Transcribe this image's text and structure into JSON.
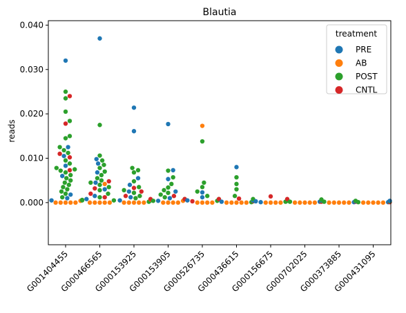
{
  "chart_data": {
    "type": "scatter",
    "subtype": "swarm (strip) plot",
    "title": "Blautia",
    "xlabel": "",
    "ylabel": "reads",
    "ylim": [
      -0.0095,
      0.041
    ],
    "yticks": [
      0.0,
      0.01,
      0.02,
      0.03,
      0.04
    ],
    "ytick_labels": [
      "0.000",
      "0.010",
      "0.020",
      "0.030",
      "0.040"
    ],
    "grid": false,
    "categories": [
      "G001404455",
      "G000466565",
      "G000153925",
      "G000153905",
      "G000526735",
      "G000436615",
      "G000156675",
      "G000702025",
      "G000373885",
      "G000431095"
    ],
    "legend": {
      "title": "treatment",
      "placement": "top-right",
      "entries": [
        {
          "label": "PRE",
          "color": "#1f77b4"
        },
        {
          "label": "AB",
          "color": "#ff7f0e"
        },
        {
          "label": "POST",
          "color": "#2ca02c"
        },
        {
          "label": "CNTL",
          "color": "#d62728"
        }
      ]
    },
    "series": [
      {
        "name": "PRE",
        "color": "#1f77b4",
        "points": [
          [
            "G001404455",
            0.032
          ],
          [
            "G001404455",
            0.0125
          ],
          [
            "G001404455",
            0.0105
          ],
          [
            "G001404455",
            0.0083
          ],
          [
            "G001404455",
            0.006
          ],
          [
            "G001404455",
            0.0018
          ],
          [
            "G001404455",
            0.001
          ],
          [
            "G001404455",
            0.0005
          ],
          [
            "G000466565",
            0.037
          ],
          [
            "G000466565",
            0.0098
          ],
          [
            "G000466565",
            0.0088
          ],
          [
            "G000466565",
            0.0068
          ],
          [
            "G000466565",
            0.0045
          ],
          [
            "G000466565",
            0.003
          ],
          [
            "G000466565",
            0.0015
          ],
          [
            "G000466565",
            0.0008
          ],
          [
            "G000153925",
            0.0214
          ],
          [
            "G000153925",
            0.0161
          ],
          [
            "G000153925",
            0.0055
          ],
          [
            "G000153925",
            0.004
          ],
          [
            "G000153925",
            0.0025
          ],
          [
            "G000153925",
            0.0012
          ],
          [
            "G000153925",
            0.0005
          ],
          [
            "G000153905",
            0.0177
          ],
          [
            "G000153905",
            0.0073
          ],
          [
            "G000153905",
            0.0053
          ],
          [
            "G000153905",
            0.0025
          ],
          [
            "G000153905",
            0.001
          ],
          [
            "G000153905",
            0.0004
          ],
          [
            "G000526735",
            0.0023
          ],
          [
            "G000526735",
            0.0012
          ],
          [
            "G000526735",
            0.0005
          ],
          [
            "G000436615",
            0.008
          ],
          [
            "G000436615",
            0.0005
          ],
          [
            "G000436615",
            0.0002
          ],
          [
            "G000156675",
            0.0003
          ],
          [
            "G000156675",
            0.0001
          ],
          [
            "G000702025",
            0.0005
          ],
          [
            "G000702025",
            0.0002
          ],
          [
            "G000373885",
            0.0003
          ],
          [
            "G000373885",
            0.0001
          ],
          [
            "G000431095",
            0.0004
          ],
          [
            "G000431095",
            0.0001
          ]
        ]
      },
      {
        "name": "AB",
        "color": "#ff7f0e",
        "points": [
          [
            "G001404455",
            0.0004
          ],
          [
            "G001404455",
            0.0
          ],
          [
            "G001404455",
            0.0
          ],
          [
            "G001404455",
            0.0
          ],
          [
            "G001404455",
            0.0
          ],
          [
            "G001404455",
            0.0
          ],
          [
            "G000466565",
            0.0042
          ],
          [
            "G000466565",
            0.0
          ],
          [
            "G000466565",
            0.0
          ],
          [
            "G000466565",
            0.0
          ],
          [
            "G000466565",
            0.0
          ],
          [
            "G000466565",
            0.0
          ],
          [
            "G000153925",
            0.0007
          ],
          [
            "G000153925",
            0.0
          ],
          [
            "G000153925",
            0.0
          ],
          [
            "G000153925",
            0.0
          ],
          [
            "G000153925",
            0.0
          ],
          [
            "G000153925",
            0.0
          ],
          [
            "G000153905",
            0.0004
          ],
          [
            "G000153905",
            0.0
          ],
          [
            "G000153905",
            0.0
          ],
          [
            "G000153905",
            0.0
          ],
          [
            "G000153905",
            0.0
          ],
          [
            "G000526735",
            0.0173
          ],
          [
            "G000526735",
            0.0
          ],
          [
            "G000526735",
            0.0
          ],
          [
            "G000526735",
            0.0
          ],
          [
            "G000526735",
            0.0
          ],
          [
            "G000436615",
            0.0
          ],
          [
            "G000436615",
            0.0
          ],
          [
            "G000436615",
            0.0
          ],
          [
            "G000436615",
            0.0
          ],
          [
            "G000436615",
            0.0
          ],
          [
            "G000156675",
            0.0
          ],
          [
            "G000156675",
            0.0
          ],
          [
            "G000156675",
            0.0
          ],
          [
            "G000156675",
            0.0
          ],
          [
            "G000702025",
            0.0
          ],
          [
            "G000702025",
            0.0
          ],
          [
            "G000702025",
            0.0
          ],
          [
            "G000702025",
            0.0
          ],
          [
            "G000702025",
            0.0
          ],
          [
            "G000373885",
            0.0
          ],
          [
            "G000373885",
            0.0
          ],
          [
            "G000373885",
            0.0
          ],
          [
            "G000373885",
            0.0
          ],
          [
            "G000373885",
            0.0
          ],
          [
            "G000431095",
            0.0
          ],
          [
            "G000431095",
            0.0
          ],
          [
            "G000431095",
            0.0
          ],
          [
            "G000431095",
            0.0
          ],
          [
            "G000431095",
            0.0
          ]
        ]
      },
      {
        "name": "POST",
        "color": "#2ca02c",
        "points": [
          [
            "G001404455",
            0.025
          ],
          [
            "G001404455",
            0.0235
          ],
          [
            "G001404455",
            0.0205
          ],
          [
            "G001404455",
            0.0184
          ],
          [
            "G001404455",
            0.015
          ],
          [
            "G001404455",
            0.0145
          ],
          [
            "G001404455",
            0.0125
          ],
          [
            "G001404455",
            0.0118
          ],
          [
            "G001404455",
            0.0112
          ],
          [
            "G001404455",
            0.0095
          ],
          [
            "G001404455",
            0.0088
          ],
          [
            "G001404455",
            0.0078
          ],
          [
            "G001404455",
            0.0075
          ],
          [
            "G001404455",
            0.0072
          ],
          [
            "G001404455",
            0.0068
          ],
          [
            "G001404455",
            0.0062
          ],
          [
            "G001404455",
            0.0055
          ],
          [
            "G001404455",
            0.005
          ],
          [
            "G001404455",
            0.0045
          ],
          [
            "G001404455",
            0.004
          ],
          [
            "G001404455",
            0.0035
          ],
          [
            "G001404455",
            0.003
          ],
          [
            "G001404455",
            0.0025
          ],
          [
            "G001404455",
            0.002
          ],
          [
            "G001404455",
            0.0012
          ],
          [
            "G001404455",
            0.0006
          ],
          [
            "G001404455",
            0.0005
          ],
          [
            "G000466565",
            0.0175
          ],
          [
            "G000466565",
            0.0106
          ],
          [
            "G000466565",
            0.0095
          ],
          [
            "G000466565",
            0.0085
          ],
          [
            "G000466565",
            0.0078
          ],
          [
            "G000466565",
            0.007
          ],
          [
            "G000466565",
            0.0062
          ],
          [
            "G000466565",
            0.0055
          ],
          [
            "G000466565",
            0.005
          ],
          [
            "G000466565",
            0.0045
          ],
          [
            "G000466565",
            0.004
          ],
          [
            "G000466565",
            0.0035
          ],
          [
            "G000466565",
            0.0028
          ],
          [
            "G000466565",
            0.002
          ],
          [
            "G000466565",
            0.0012
          ],
          [
            "G000466565",
            0.0005
          ],
          [
            "G000153925",
            0.0078
          ],
          [
            "G000153925",
            0.0073
          ],
          [
            "G000153925",
            0.0068
          ],
          [
            "G000153925",
            0.0048
          ],
          [
            "G000153925",
            0.0035
          ],
          [
            "G000153925",
            0.0028
          ],
          [
            "G000153925",
            0.0022
          ],
          [
            "G000153925",
            0.0015
          ],
          [
            "G000153925",
            0.001
          ],
          [
            "G000153925",
            0.0005
          ],
          [
            "G000153925",
            0.0002
          ],
          [
            "G000153905",
            0.0072
          ],
          [
            "G000153905",
            0.0057
          ],
          [
            "G000153905",
            0.0042
          ],
          [
            "G000153905",
            0.0034
          ],
          [
            "G000153905",
            0.0028
          ],
          [
            "G000153905",
            0.0022
          ],
          [
            "G000153905",
            0.0018
          ],
          [
            "G000153905",
            0.0012
          ],
          [
            "G000153905",
            0.0008
          ],
          [
            "G000153905",
            0.0004
          ],
          [
            "G000526735",
            0.0138
          ],
          [
            "G000526735",
            0.0045
          ],
          [
            "G000526735",
            0.0035
          ],
          [
            "G000526735",
            0.0025
          ],
          [
            "G000526735",
            0.0015
          ],
          [
            "G000526735",
            0.0008
          ],
          [
            "G000526735",
            0.0004
          ],
          [
            "G000436615",
            0.0057
          ],
          [
            "G000436615",
            0.0042
          ],
          [
            "G000436615",
            0.003
          ],
          [
            "G000436615",
            0.0015
          ],
          [
            "G000436615",
            0.0008
          ],
          [
            "G000436615",
            0.0004
          ],
          [
            "G000436615",
            0.0001
          ],
          [
            "G000156675",
            0.0006
          ],
          [
            "G000156675",
            0.0004
          ],
          [
            "G000156675",
            0.0002
          ],
          [
            "G000702025",
            0.0007
          ],
          [
            "G000702025",
            0.0004
          ],
          [
            "G000702025",
            0.0002
          ],
          [
            "G000373885",
            0.0004
          ],
          [
            "G000373885",
            0.0002
          ],
          [
            "G000431095",
            0.0003
          ],
          [
            "G000431095",
            0.0001
          ]
        ]
      },
      {
        "name": "CNTL",
        "color": "#d62728",
        "points": [
          [
            "G001404455",
            0.024
          ],
          [
            "G001404455",
            0.0178
          ],
          [
            "G001404455",
            0.011
          ],
          [
            "G001404455",
            0.0102
          ],
          [
            "G001404455",
            0.0073
          ],
          [
            "G000466565",
            0.0048
          ],
          [
            "G000466565",
            0.0032
          ],
          [
            "G000466565",
            0.002
          ],
          [
            "G000466565",
            0.0012
          ],
          [
            "G000153925",
            0.0033
          ],
          [
            "G000153925",
            0.0025
          ],
          [
            "G000153925",
            0.0015
          ],
          [
            "G000153925",
            0.0008
          ],
          [
            "G000153905",
            0.0015
          ],
          [
            "G000153905",
            0.0008
          ],
          [
            "G000526735",
            0.0008
          ],
          [
            "G000526735",
            0.0003
          ],
          [
            "G000436615",
            0.0009
          ],
          [
            "G000436615",
            0.0003
          ],
          [
            "G000156675",
            0.0014
          ],
          [
            "G000156675",
            0.0008
          ],
          [
            "G000702025",
            0.0002
          ],
          [
            "G000373885",
            0.0002
          ],
          [
            "G000431095",
            0.0001
          ]
        ]
      }
    ]
  }
}
